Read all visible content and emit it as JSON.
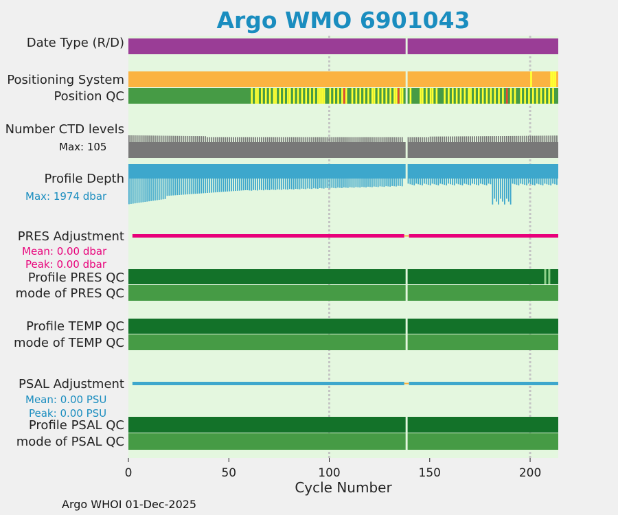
{
  "title": "Argo WMO 6901043",
  "footer": "Argo WHOI 01-Dec-2025",
  "colors": {
    "panel_bg": "#e4f7df",
    "date_type": "#9a3d96",
    "positioning": "#fbb341",
    "qc_good": "#469b45",
    "qc_yellow": "#ffff33",
    "qc_red": "#e34a33",
    "ctd": "#787878",
    "depth": "#3da7cc",
    "pres_adj": "#e8007a",
    "psal_adj": "#3da7cc",
    "qc_dark": "#137229",
    "accent_label": "#1a8dbf"
  },
  "labels": {
    "date_type": "Date Type (R/D)",
    "positioning": "Positioning System",
    "position_qc": "Position QC",
    "ctd_levels": "Number CTD levels",
    "ctd_max": "Max: 105",
    "profile_depth": "Profile Depth",
    "depth_max": "Max: 1974 dbar",
    "pres_adj": "PRES Adjustment",
    "pres_mean": "Mean: 0.00 dbar",
    "pres_peak": "Peak: 0.00 dbar",
    "profile_pres_qc": "Profile PRES QC",
    "mode_pres_qc": "mode of PRES QC",
    "profile_temp_qc": "Profile TEMP QC",
    "mode_temp_qc": "mode of TEMP QC",
    "psal_adj": "PSAL Adjustment",
    "psal_mean": "Mean: 0.00 PSU",
    "psal_peak": "Peak: 0.00 PSU",
    "profile_psal_qc": "Profile PSAL QC",
    "mode_psal_qc": "mode of PSAL QC"
  },
  "chart_data": {
    "type": "qc-timeline",
    "xlabel": "Cycle Number",
    "xlim": [
      0,
      214
    ],
    "xticks": [
      0,
      50,
      100,
      150,
      200
    ],
    "gridlines_x": [
      100,
      200
    ],
    "missing_cycles": [
      138,
      139
    ],
    "date_type": "D",
    "ctd_levels_max": 105,
    "ctd_levels_min": 75,
    "profile_depth_max_dbar": 1974,
    "profile_depth_typical_dbar": 1000,
    "depth_deep_cycles": [
      182,
      183,
      184,
      185,
      186,
      187,
      188,
      189,
      190,
      191
    ],
    "position_qc_yellow_cycles": [
      62,
      64,
      65,
      67,
      69,
      71,
      73,
      74,
      76,
      78,
      80,
      81,
      83,
      85,
      87,
      89,
      91,
      93,
      95,
      96,
      97,
      98,
      101,
      103,
      105,
      107,
      109,
      112,
      114,
      116,
      118,
      120,
      122,
      123,
      125,
      127,
      129,
      131,
      133,
      134,
      136,
      137,
      141,
      146,
      147,
      149,
      151,
      152,
      154,
      158,
      160,
      162,
      164,
      166,
      168,
      170,
      171,
      173,
      175,
      177,
      179,
      181,
      183,
      185,
      187,
      189,
      191,
      193,
      196,
      198,
      200,
      202,
      204,
      206,
      208,
      210,
      212
    ],
    "position_qc_red_cycles": [
      108,
      135,
      189
    ],
    "positioning_yellow_cycles": [
      201,
      211,
      212,
      213
    ],
    "pres_adjustment_mean_dbar": 0.0,
    "pres_adjustment_peak_dbar": 0.0,
    "psal_adjustment_mean_psu": 0.0,
    "psal_adjustment_peak_psu": 0.0,
    "profile_pres_qc_light_cycles": [
      207,
      209
    ]
  }
}
